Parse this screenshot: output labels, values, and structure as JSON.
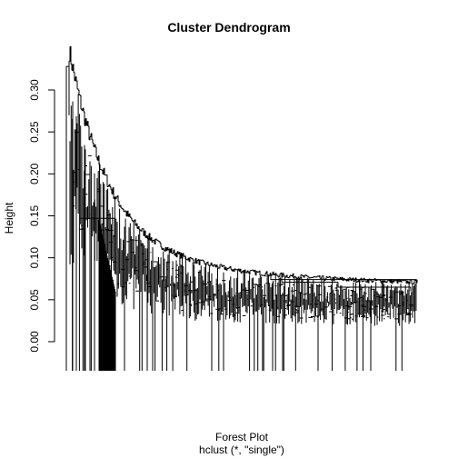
{
  "chart_data": {
    "type": "dendrogram",
    "title": "Cluster Dendrogram",
    "ylabel": "Height",
    "xlabel": "Forest Plot",
    "sub": "hclust (*, \"single\")",
    "ylim": [
      0,
      0.33
    ],
    "yticks": [
      0.0,
      0.05,
      0.1,
      0.15,
      0.2,
      0.25,
      0.3
    ],
    "ytick_labels": [
      "0.00",
      "0.05",
      "0.10",
      "0.15",
      "0.20",
      "0.25",
      "0.30"
    ],
    "merge_heights_profile": {
      "max": 0.328,
      "notable_merges": [
        0.328,
        0.27,
        0.235,
        0.205,
        0.165,
        0.147,
        0.13,
        0.11,
        0.095,
        0.085,
        0.078,
        0.074,
        0.065
      ]
    },
    "grid": false,
    "legend": "none"
  },
  "colors": {
    "line": "#000000",
    "background": "#ffffff"
  }
}
